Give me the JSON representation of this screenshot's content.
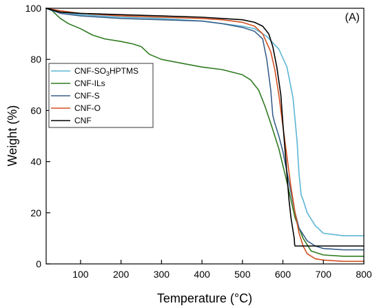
{
  "chart_data": {
    "type": "line",
    "title": "",
    "panel_label": "(A)",
    "xlabel": "Temperature (°C)",
    "ylabel": "Weight (%)",
    "xlim": [
      15,
      800
    ],
    "ylim": [
      0,
      100
    ],
    "x_ticks": [
      100,
      200,
      300,
      400,
      500,
      600,
      700,
      800
    ],
    "y_ticks": [
      0,
      20,
      40,
      60,
      80,
      100
    ],
    "grid": false,
    "legend_position": "left",
    "series": [
      {
        "name": "CNF-SO3HPTMS",
        "legend_label": {
          "base": "CNF-SO",
          "sub": "3",
          "tail": "HPTMS"
        },
        "color": "#5bb5d5",
        "points": [
          [
            15,
            100
          ],
          [
            50,
            98.5
          ],
          [
            100,
            97.5
          ],
          [
            200,
            96.5
          ],
          [
            300,
            96
          ],
          [
            400,
            95
          ],
          [
            450,
            94
          ],
          [
            500,
            93
          ],
          [
            530,
            92
          ],
          [
            560,
            89
          ],
          [
            590,
            84
          ],
          [
            610,
            77
          ],
          [
            625,
            65
          ],
          [
            635,
            48
          ],
          [
            640,
            35
          ],
          [
            645,
            27
          ],
          [
            650,
            25
          ],
          [
            660,
            20
          ],
          [
            680,
            15
          ],
          [
            700,
            12
          ],
          [
            750,
            11
          ],
          [
            800,
            11
          ]
        ]
      },
      {
        "name": "CNF-ILs",
        "color": "#2e7a1f",
        "points": [
          [
            15,
            100
          ],
          [
            30,
            99
          ],
          [
            50,
            96
          ],
          [
            70,
            94
          ],
          [
            100,
            92
          ],
          [
            130,
            89.5
          ],
          [
            160,
            88
          ],
          [
            200,
            87
          ],
          [
            230,
            86
          ],
          [
            250,
            85
          ],
          [
            270,
            82
          ],
          [
            300,
            80
          ],
          [
            350,
            78.5
          ],
          [
            400,
            77
          ],
          [
            450,
            76
          ],
          [
            500,
            74
          ],
          [
            520,
            72
          ],
          [
            540,
            68
          ],
          [
            555,
            62
          ],
          [
            570,
            55
          ],
          [
            590,
            45
          ],
          [
            610,
            32
          ],
          [
            630,
            18
          ],
          [
            650,
            10
          ],
          [
            670,
            5
          ],
          [
            700,
            3.5
          ],
          [
            750,
            3
          ],
          [
            800,
            3
          ]
        ]
      },
      {
        "name": "CNF-S",
        "color": "#3a5f8a",
        "points": [
          [
            15,
            100
          ],
          [
            50,
            98
          ],
          [
            100,
            97
          ],
          [
            200,
            96
          ],
          [
            300,
            95.5
          ],
          [
            400,
            95
          ],
          [
            450,
            94
          ],
          [
            500,
            92.5
          ],
          [
            530,
            91
          ],
          [
            550,
            88
          ],
          [
            560,
            80
          ],
          [
            570,
            68
          ],
          [
            575,
            58
          ],
          [
            580,
            55
          ],
          [
            590,
            50
          ],
          [
            600,
            44
          ],
          [
            610,
            36
          ],
          [
            620,
            28
          ],
          [
            630,
            20
          ],
          [
            640,
            14
          ],
          [
            660,
            9
          ],
          [
            680,
            7
          ],
          [
            700,
            6
          ],
          [
            750,
            5.5
          ],
          [
            800,
            5.5
          ]
        ]
      },
      {
        "name": "CNF-O",
        "color": "#d05020",
        "points": [
          [
            15,
            100
          ],
          [
            50,
            99
          ],
          [
            100,
            98
          ],
          [
            200,
            97
          ],
          [
            300,
            96.5
          ],
          [
            400,
            96
          ],
          [
            450,
            95.5
          ],
          [
            500,
            94.5
          ],
          [
            530,
            93
          ],
          [
            550,
            90
          ],
          [
            570,
            83
          ],
          [
            580,
            76
          ],
          [
            590,
            66
          ],
          [
            600,
            54
          ],
          [
            610,
            42
          ],
          [
            620,
            30
          ],
          [
            630,
            20
          ],
          [
            640,
            12
          ],
          [
            650,
            7
          ],
          [
            660,
            4
          ],
          [
            680,
            2
          ],
          [
            700,
            1.5
          ],
          [
            750,
            1
          ],
          [
            800,
            1
          ]
        ]
      },
      {
        "name": "CNF",
        "color": "#000000",
        "points": [
          [
            15,
            100
          ],
          [
            50,
            98.5
          ],
          [
            100,
            98
          ],
          [
            200,
            97.5
          ],
          [
            300,
            97
          ],
          [
            400,
            96.5
          ],
          [
            450,
            96
          ],
          [
            500,
            95.5
          ],
          [
            530,
            94.5
          ],
          [
            550,
            93
          ],
          [
            565,
            90
          ],
          [
            575,
            85
          ],
          [
            585,
            77
          ],
          [
            595,
            66
          ],
          [
            600,
            55
          ],
          [
            605,
            45
          ],
          [
            610,
            35
          ],
          [
            615,
            25
          ],
          [
            620,
            18
          ],
          [
            625,
            13
          ],
          [
            628,
            10
          ],
          [
            629,
            7.5
          ],
          [
            630,
            7
          ],
          [
            800,
            7
          ]
        ]
      }
    ]
  }
}
